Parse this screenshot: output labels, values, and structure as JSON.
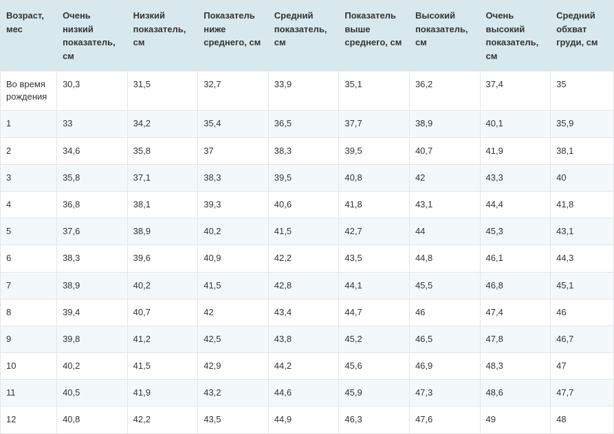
{
  "table": {
    "type": "table",
    "header_bg": "#d7e9ee",
    "row_even_bg": "#f3f9fa",
    "row_odd_bg": "#ffffff",
    "border_color": "#e5e5e5",
    "text_color": "#333333",
    "font_size": 13,
    "columns": [
      "Возраст, мес",
      "Очень низкий показатель, см",
      "Низкий показатель, см",
      "Показатель ниже среднего, см",
      "Средний показатель, см",
      "Показатель выше среднего, см",
      "Высокий показатель, см",
      "Очень высокий показатель, см",
      "Средний обхват груди, см"
    ],
    "rows": [
      [
        "Во время рождения",
        "30,3",
        "31,5",
        "32,7",
        "33,9",
        "35,1",
        "36,2",
        "37,4",
        "35"
      ],
      [
        "1",
        "33",
        "34,2",
        "35,4",
        "36,5",
        "37,7",
        "38,9",
        "40,1",
        "35,9"
      ],
      [
        "2",
        "34,6",
        "35,8",
        "37",
        "38,3",
        "39,5",
        "40,7",
        "41,9",
        "38,1"
      ],
      [
        "3",
        "35,8",
        "37,1",
        "38,3",
        "39,5",
        "40,8",
        "42",
        "43,3",
        "40"
      ],
      [
        "4",
        "36,8",
        "38,1",
        "39,3",
        "40,6",
        "41,8",
        "43,1",
        "44,4",
        "41,8"
      ],
      [
        "5",
        "37,6",
        "38,9",
        "40,2",
        "41,5",
        "42,7",
        "44",
        "45,3",
        "43,1"
      ],
      [
        "6",
        "38,3",
        "39,6",
        "40,9",
        "42,2",
        "43,5",
        "44,8",
        "46,1",
        "44,3"
      ],
      [
        "7",
        "38,9",
        "40,2",
        "41,5",
        "42,8",
        "44,1",
        "45,5",
        "46,8",
        "45,1"
      ],
      [
        "8",
        "39,4",
        "40,7",
        "42",
        "43,4",
        "44,7",
        "46",
        "47,4",
        "46"
      ],
      [
        "9",
        "39,8",
        "41,2",
        "42,5",
        "43,8",
        "45,2",
        "46,5",
        "47,8",
        "46,7"
      ],
      [
        "10",
        "40,2",
        "41,5",
        "42,9",
        "44,2",
        "45,6",
        "46,9",
        "48,3",
        "47"
      ],
      [
        "11",
        "40,5",
        "41,9",
        "43,2",
        "44,6",
        "45,9",
        "47,3",
        "48,6",
        "47,7"
      ],
      [
        "12",
        "40,8",
        "42,2",
        "43,5",
        "44,9",
        "46,3",
        "47,6",
        "49",
        "48"
      ]
    ]
  }
}
